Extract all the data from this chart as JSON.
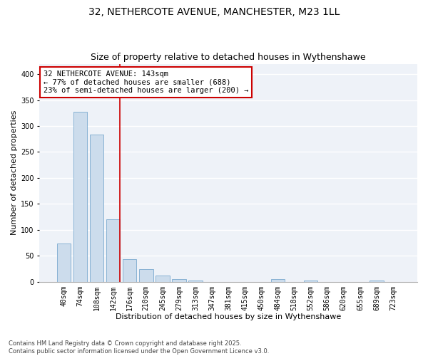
{
  "title_line1": "32, NETHERCOTE AVENUE, MANCHESTER, M23 1LL",
  "title_line2": "Size of property relative to detached houses in Wythenshawe",
  "xlabel": "Distribution of detached houses by size in Wythenshawe",
  "ylabel": "Number of detached properties",
  "categories": [
    "40sqm",
    "74sqm",
    "108sqm",
    "142sqm",
    "176sqm",
    "210sqm",
    "245sqm",
    "279sqm",
    "313sqm",
    "347sqm",
    "381sqm",
    "415sqm",
    "450sqm",
    "484sqm",
    "518sqm",
    "552sqm",
    "586sqm",
    "620sqm",
    "655sqm",
    "689sqm",
    "723sqm"
  ],
  "bar_values": [
    74,
    328,
    284,
    120,
    44,
    24,
    12,
    5,
    2,
    0,
    0,
    0,
    0,
    5,
    0,
    2,
    0,
    0,
    0,
    2,
    0
  ],
  "bar_color": "#ccdcec",
  "bar_edge_color": "#7aaacf",
  "red_line_index": 3,
  "annotation_text": "32 NETHERCOTE AVENUE: 143sqm\n← 77% of detached houses are smaller (688)\n23% of semi-detached houses are larger (200) →",
  "annotation_box_color": "#ffffff",
  "annotation_box_edge_color": "#cc0000",
  "ylim": [
    0,
    420
  ],
  "yticks": [
    0,
    50,
    100,
    150,
    200,
    250,
    300,
    350,
    400
  ],
  "background_color": "#eef2f8",
  "grid_color": "#ffffff",
  "footer_text": "Contains HM Land Registry data © Crown copyright and database right 2025.\nContains public sector information licensed under the Open Government Licence v3.0.",
  "title_fontsize": 10,
  "subtitle_fontsize": 9,
  "axis_label_fontsize": 8,
  "tick_fontsize": 7,
  "annotation_fontsize": 7.5,
  "footer_fontsize": 6
}
